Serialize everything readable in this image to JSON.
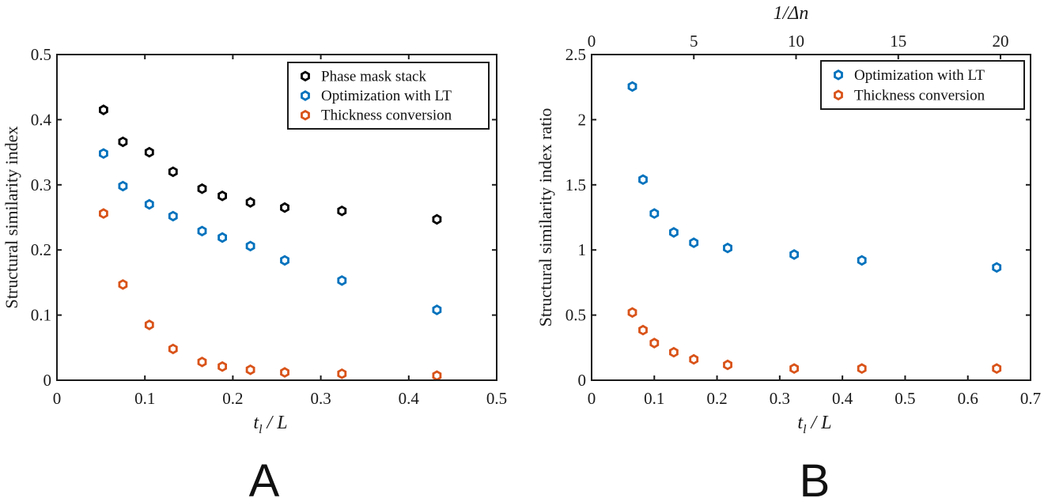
{
  "chart_data": [
    {
      "panel": "A",
      "type": "scatter",
      "title": "",
      "xlabel": "t_l / L",
      "xlabel_main": "t",
      "xlabel_sub": "l",
      "xlabel_rest": " / L",
      "ylabel": "Structural similarity index",
      "xlim": [
        0,
        0.5
      ],
      "ylim": [
        0,
        0.5
      ],
      "xticks": [
        0,
        0.1,
        0.2,
        0.3,
        0.4,
        0.5
      ],
      "xtick_labels": [
        "0",
        "0.1",
        "0.2",
        "0.3",
        "0.4",
        "0.5"
      ],
      "yticks": [
        0,
        0.1,
        0.2,
        0.3,
        0.4,
        0.5
      ],
      "ytick_labels": [
        "0",
        "0.1",
        "0.2",
        "0.3",
        "0.4",
        "0.5"
      ],
      "grid": false,
      "legend_position": "top-right",
      "x": [
        0.053,
        0.075,
        0.105,
        0.132,
        0.165,
        0.188,
        0.22,
        0.259,
        0.324,
        0.432
      ],
      "series": [
        {
          "name": "Phase mask stack",
          "color": "#000000",
          "values": [
            0.415,
            0.366,
            0.35,
            0.32,
            0.294,
            0.283,
            0.273,
            0.265,
            0.26,
            0.247
          ]
        },
        {
          "name": "Optimization with LT",
          "color": "#0072BD",
          "values": [
            0.348,
            0.298,
            0.27,
            0.252,
            0.229,
            0.219,
            0.206,
            0.184,
            0.153,
            0.108
          ]
        },
        {
          "name": "Thickness conversion",
          "color": "#D95319",
          "values": [
            0.256,
            0.147,
            0.085,
            0.048,
            0.028,
            0.021,
            0.016,
            0.012,
            0.01,
            0.007
          ]
        }
      ]
    },
    {
      "panel": "B",
      "type": "scatter",
      "title": "",
      "xlabel": "t_l / L",
      "xlabel_main": "t",
      "xlabel_sub": "l",
      "xlabel_rest": " / L",
      "ylabel": "Structural similarity index ratio",
      "top_xlabel": "1/Δn",
      "xlim": [
        0,
        0.7
      ],
      "ylim": [
        0,
        2.5
      ],
      "top_xlim": [
        0,
        21.47
      ],
      "xticks": [
        0,
        0.1,
        0.2,
        0.3,
        0.4,
        0.5,
        0.6,
        0.7
      ],
      "xtick_labels": [
        "0",
        "0.1",
        "0.2",
        "0.3",
        "0.4",
        "0.5",
        "0.6",
        "0.7"
      ],
      "yticks": [
        0,
        0.5,
        1,
        1.5,
        2,
        2.5
      ],
      "ytick_labels": [
        "0",
        "0.5",
        "1",
        "1.5",
        "2",
        "2.5"
      ],
      "top_xticks": [
        0,
        5,
        10,
        15,
        20
      ],
      "top_xtick_labels": [
        "0",
        "5",
        "10",
        "15",
        "20"
      ],
      "grid": false,
      "legend_position": "top-right",
      "x": [
        0.065,
        0.082,
        0.1,
        0.131,
        0.163,
        0.217,
        0.323,
        0.431,
        0.646
      ],
      "series": [
        {
          "name": "Optimization with LT",
          "color": "#0072BD",
          "values": [
            2.255,
            1.54,
            1.28,
            1.135,
            1.055,
            1.015,
            0.965,
            0.92,
            0.866
          ]
        },
        {
          "name": "Thickness conversion",
          "color": "#D95319",
          "values": [
            0.52,
            0.385,
            0.285,
            0.215,
            0.16,
            0.118,
            0.09,
            0.09,
            0.09
          ]
        }
      ]
    }
  ],
  "panels": {
    "a_letter": "A",
    "b_letter": "B"
  }
}
